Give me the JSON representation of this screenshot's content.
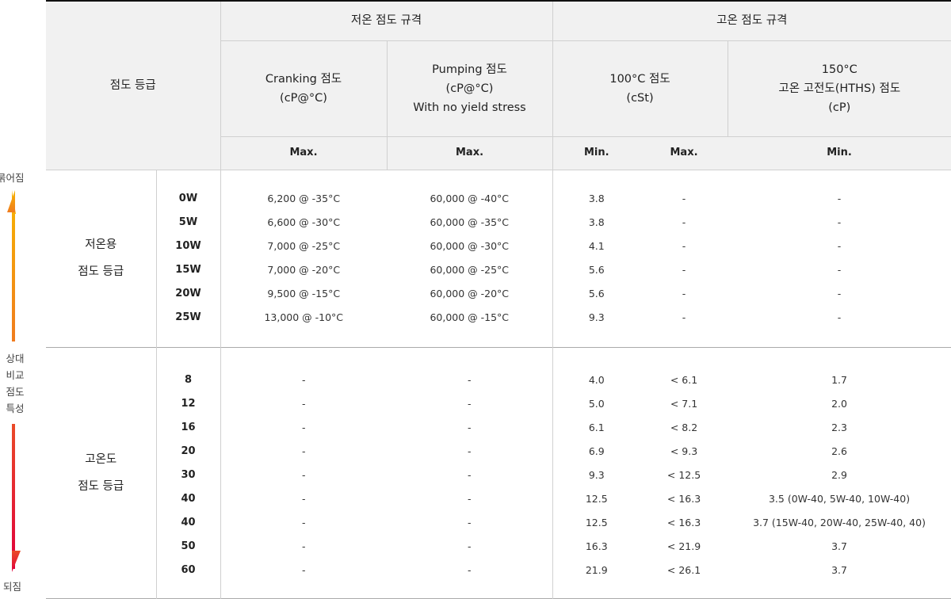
{
  "side": {
    "top": "묽어짐",
    "middle": [
      "상대",
      "비교",
      "점도",
      "특성"
    ],
    "bottom": "되짐",
    "colors": {
      "up_top": "#f7b500",
      "up_bottom": "#f07c1e",
      "down_top": "#ea4a28",
      "down_bottom": "#e0003c"
    }
  },
  "header": {
    "grade": "점도 등급",
    "low_temp": "저온 점도 규격",
    "high_temp": "고온 점도 규격",
    "cranking": [
      "Cranking 점도",
      "(cP@°C)"
    ],
    "pumping": [
      "Pumping 점도",
      "(cP@°C)",
      "With no yield stress"
    ],
    "kv100": [
      "100°C 점도",
      "(cSt)"
    ],
    "hths": [
      "150°C",
      "고온 고전도(HTHS) 점도",
      "(cP)"
    ],
    "sub": [
      "Max.",
      "Max.",
      "Min.",
      "Max.",
      "Min."
    ]
  },
  "sections": [
    {
      "name": [
        "저온용",
        "점도 등급"
      ],
      "rows": [
        [
          "0W",
          "6,200 @ -35°C",
          "60,000 @ -40°C",
          "3.8",
          "-",
          "-"
        ],
        [
          "5W",
          "6,600 @ -30°C",
          "60,000 @ -35°C",
          "3.8",
          "-",
          "-"
        ],
        [
          "10W",
          "7,000 @ -25°C",
          "60,000 @ -30°C",
          "4.1",
          "-",
          "-"
        ],
        [
          "15W",
          "7,000 @ -20°C",
          "60,000 @ -25°C",
          "5.6",
          "-",
          "-"
        ],
        [
          "20W",
          "9,500 @ -15°C",
          "60,000 @ -20°C",
          "5.6",
          "-",
          "-"
        ],
        [
          "25W",
          "13,000 @ -10°C",
          "60,000 @ -15°C",
          "9.3",
          "-",
          "-"
        ]
      ]
    },
    {
      "name": [
        "고온도",
        "점도 등급"
      ],
      "rows": [
        [
          "8",
          "-",
          "-",
          "4.0",
          "< 6.1",
          "1.7"
        ],
        [
          "12",
          "-",
          "-",
          "5.0",
          "< 7.1",
          "2.0"
        ],
        [
          "16",
          "-",
          "-",
          "6.1",
          "< 8.2",
          "2.3"
        ],
        [
          "20",
          "-",
          "-",
          "6.9",
          "< 9.3",
          "2.6"
        ],
        [
          "30",
          "-",
          "-",
          "9.3",
          "< 12.5",
          "2.9"
        ],
        [
          "40",
          "-",
          "-",
          "12.5",
          "< 16.3",
          "3.5 (0W-40, 5W-40, 10W-40)"
        ],
        [
          "40",
          "-",
          "-",
          "12.5",
          "< 16.3",
          "3.7 (15W-40, 20W-40, 25W-40, 40)"
        ],
        [
          "50",
          "-",
          "-",
          "16.3",
          "< 21.9",
          "3.7"
        ],
        [
          "60",
          "-",
          "-",
          "21.9",
          "< 26.1",
          "3.7"
        ]
      ]
    }
  ]
}
